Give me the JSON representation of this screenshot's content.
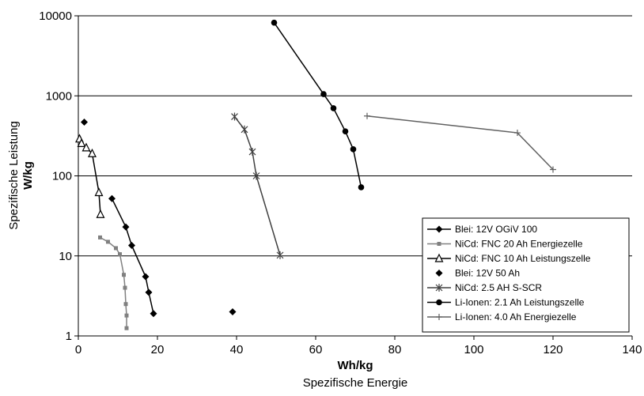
{
  "chart_data": {
    "type": "scatter",
    "x_axis": {
      "label_bold": "Wh/kg",
      "label_sub": "Spezifische Energie",
      "range": [
        0,
        140
      ],
      "ticks": [
        0,
        20,
        40,
        60,
        80,
        100,
        120,
        140
      ]
    },
    "y_axis": {
      "label_bold": "W/kg",
      "label_sub": "Spezifische Leistung",
      "scale": "log",
      "range": [
        1,
        10000
      ],
      "ticks": [
        1,
        10,
        100,
        1000,
        10000
      ]
    },
    "grid": "horizontal-major",
    "legend_position": "bottom-right",
    "series": [
      {
        "name": "Blei: 12V OGiV 100",
        "color": "#000000",
        "marker": "diamond",
        "line": true,
        "points": [
          [
            8.5,
            52
          ],
          [
            12,
            23
          ],
          [
            13.5,
            13.5
          ],
          [
            17,
            5.5
          ],
          [
            17.8,
            3.5
          ],
          [
            19,
            1.9
          ]
        ]
      },
      {
        "name": "NiCd: FNC 20 Ah Energiezelle",
        "color": "#808080",
        "marker": "square",
        "line": true,
        "points": [
          [
            5.5,
            17
          ],
          [
            7.5,
            15
          ],
          [
            9.5,
            12.5
          ],
          [
            10.5,
            10.5
          ],
          [
            11.5,
            5.8
          ],
          [
            11.8,
            4
          ],
          [
            12,
            2.5
          ],
          [
            12.2,
            1.8
          ],
          [
            12.2,
            1.25
          ]
        ]
      },
      {
        "name": "NiCd: FNC 10 Ah Leistungszelle",
        "color": "#000000",
        "marker": "triangle",
        "line": true,
        "points": [
          [
            0.3,
            290
          ],
          [
            0.8,
            255
          ],
          [
            2,
            225
          ],
          [
            3.5,
            190
          ],
          [
            5.2,
            62
          ],
          [
            5.6,
            33
          ]
        ]
      },
      {
        "name": "Blei: 12V 50 Ah",
        "color": "#000000",
        "marker": "diamond",
        "line": false,
        "points": [
          [
            1.5,
            470
          ],
          [
            39,
            2
          ]
        ]
      },
      {
        "name": "NiCd: 2.5 AH S-SCR",
        "color": "#404040",
        "marker": "star",
        "line": true,
        "points": [
          [
            39.5,
            550
          ],
          [
            42,
            380
          ],
          [
            44,
            200
          ],
          [
            45,
            100
          ],
          [
            51,
            10.2
          ]
        ]
      },
      {
        "name": "Li-Ionen: 2.1 Ah Leistungszelle",
        "color": "#000000",
        "marker": "circle",
        "line": true,
        "points": [
          [
            49.5,
            8200
          ],
          [
            62,
            1050
          ],
          [
            64.5,
            700
          ],
          [
            67.5,
            360
          ],
          [
            69.5,
            215
          ],
          [
            71.5,
            72
          ]
        ]
      },
      {
        "name": "Li-Ionen: 4.0 Ah Energiezelle",
        "color": "#606060",
        "marker": "plus",
        "line": true,
        "points": [
          [
            73,
            560
          ],
          [
            111,
            345
          ],
          [
            120,
            120
          ]
        ]
      }
    ]
  }
}
